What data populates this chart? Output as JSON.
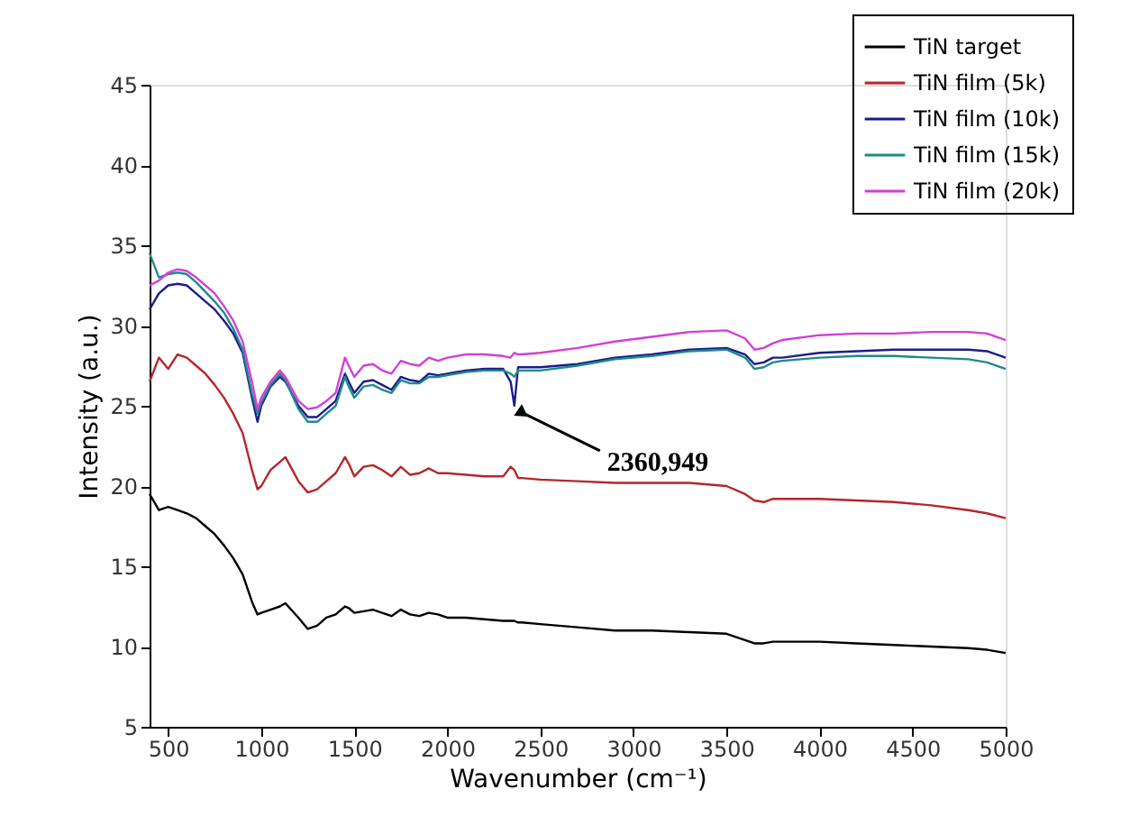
{
  "chart_data": {
    "type": "line",
    "xlabel": "Wavenumber (cm⁻¹)",
    "ylabel": "Intensity (a.u.)",
    "x": [
      400,
      450,
      500,
      550,
      600,
      650,
      700,
      750,
      800,
      850,
      900,
      950,
      980,
      1000,
      1050,
      1100,
      1130,
      1200,
      1250,
      1300,
      1350,
      1400,
      1450,
      1470,
      1500,
      1550,
      1600,
      1650,
      1700,
      1750,
      1800,
      1850,
      1900,
      1950,
      2000,
      2100,
      2200,
      2300,
      2340,
      2360,
      2380,
      2400,
      2500,
      2700,
      2900,
      3100,
      3300,
      3500,
      3600,
      3650,
      3700,
      3750,
      3800,
      4000,
      4200,
      4400,
      4600,
      4800,
      4900,
      5000
    ],
    "series": [
      {
        "name": "TiN target",
        "color": "#000000",
        "values": [
          19.5,
          18.5,
          18.7,
          18.5,
          18.3,
          18,
          17.5,
          17,
          16.3,
          15.5,
          14.5,
          12.8,
          12,
          12.1,
          12.3,
          12.5,
          12.7,
          11.8,
          11.1,
          11.3,
          11.8,
          12,
          12.5,
          12.4,
          12.1,
          12.2,
          12.3,
          12.1,
          11.9,
          12.3,
          12,
          11.9,
          12.1,
          12,
          11.8,
          11.8,
          11.7,
          11.6,
          11.6,
          11.6,
          11.5,
          11.5,
          11.4,
          11.2,
          11,
          11,
          10.9,
          10.8,
          10.4,
          10.2,
          10.2,
          10.3,
          10.3,
          10.3,
          10.2,
          10.1,
          10,
          9.9,
          9.8,
          9.6
        ]
      },
      {
        "name": "TiN film (5k)",
        "color": "#b5262b",
        "values": [
          26.5,
          28,
          27.3,
          28.2,
          28,
          27.5,
          27,
          26.3,
          25.5,
          24.5,
          23.3,
          21,
          19.8,
          20,
          21,
          21.5,
          21.8,
          20.3,
          19.6,
          19.8,
          20.3,
          20.8,
          21.8,
          21.4,
          20.6,
          21.2,
          21.3,
          21,
          20.6,
          21.2,
          20.7,
          20.8,
          21.1,
          20.8,
          20.8,
          20.7,
          20.6,
          20.6,
          21.2,
          21,
          20.5,
          20.5,
          20.4,
          20.3,
          20.2,
          20.2,
          20.2,
          20,
          19.5,
          19.1,
          19,
          19.2,
          19.2,
          19.2,
          19.1,
          19,
          18.8,
          18.5,
          18.3,
          18
        ]
      },
      {
        "name": "TiN film (10k)",
        "color": "#1c1c8a",
        "values": [
          31,
          32,
          32.5,
          32.6,
          32.5,
          32,
          31.5,
          31,
          30.3,
          29.5,
          28.3,
          25.5,
          24,
          25,
          26.2,
          26.8,
          26.5,
          25,
          24.3,
          24.3,
          24.8,
          25.3,
          27,
          26.5,
          25.8,
          26.5,
          26.6,
          26.3,
          26,
          26.8,
          26.6,
          26.5,
          27,
          26.9,
          27,
          27.2,
          27.3,
          27.3,
          26.5,
          25,
          27.4,
          27.4,
          27.4,
          27.6,
          28,
          28.2,
          28.5,
          28.6,
          28.2,
          27.6,
          27.7,
          28,
          28,
          28.3,
          28.4,
          28.5,
          28.5,
          28.5,
          28.4,
          28
        ]
      },
      {
        "name": "TiN film (15k)",
        "color": "#1f8a8a",
        "values": [
          34.5,
          33,
          33.2,
          33.3,
          33.2,
          32.7,
          32.1,
          31.5,
          30.8,
          29.8,
          28.5,
          25.8,
          24.5,
          25.2,
          26.3,
          27,
          26.6,
          24.8,
          24,
          24,
          24.5,
          25,
          26.8,
          26.2,
          25.5,
          26.2,
          26.3,
          26,
          25.8,
          26.6,
          26.4,
          26.4,
          26.8,
          26.8,
          26.9,
          27.1,
          27.2,
          27.2,
          27,
          26.8,
          27.2,
          27.2,
          27.2,
          27.5,
          27.9,
          28.1,
          28.4,
          28.5,
          28,
          27.3,
          27.4,
          27.7,
          27.8,
          28,
          28.1,
          28.1,
          28,
          27.9,
          27.7,
          27.3
        ]
      },
      {
        "name": "TiN film (20k)",
        "color": "#d23fd6",
        "values": [
          32.5,
          32.8,
          33.3,
          33.5,
          33.4,
          33,
          32.5,
          32,
          31.2,
          30.3,
          29,
          26.5,
          24.8,
          25.5,
          26.5,
          27.2,
          26.8,
          25.3,
          24.8,
          24.9,
          25.3,
          25.8,
          28,
          27.5,
          26.8,
          27.5,
          27.6,
          27.2,
          27,
          27.8,
          27.6,
          27.5,
          28,
          27.8,
          28,
          28.2,
          28.2,
          28.1,
          28,
          28.3,
          28.2,
          28.2,
          28.3,
          28.6,
          29,
          29.3,
          29.6,
          29.7,
          29.2,
          28.5,
          28.6,
          28.9,
          29.1,
          29.4,
          29.5,
          29.5,
          29.6,
          29.6,
          29.5,
          29.1
        ]
      }
    ],
    "xlim": [
      400,
      5000
    ],
    "xticks": [
      500,
      1000,
      1500,
      2000,
      2500,
      3000,
      3500,
      4000,
      4500,
      5000
    ],
    "ylim": [
      5,
      45
    ],
    "yticks": [
      5,
      10,
      15,
      20,
      25,
      30,
      35,
      40,
      45
    ],
    "annotations": [
      {
        "text": "2360,949",
        "x": 2360,
        "y": 25
      }
    ],
    "legend": "top right",
    "grid": false,
    "line_style": "solid",
    "marker": "none"
  }
}
